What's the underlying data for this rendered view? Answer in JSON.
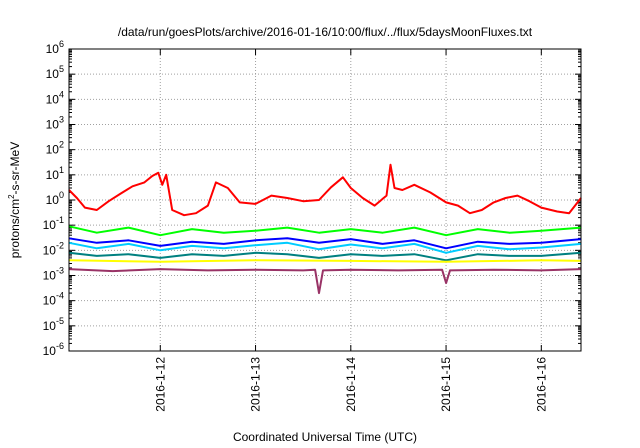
{
  "chart_data": {
    "type": "line",
    "title": "/data/run/goesPlots/archive/2016-01-16/10:00/flux/../flux/5daysMoonFluxes.txt",
    "xlabel": "Coordinated Universal Time (UTC)",
    "ylabel_parts": [
      "protons/cm",
      "2",
      "-s-sr-MeV"
    ],
    "x_range": [
      "2016-01-11T01:00",
      "2016-01-16T10:00"
    ],
    "x_ticks": [
      "2016-1-12",
      "2016-1-13",
      "2016-1-14",
      "2016-1-15",
      "2016-1-16"
    ],
    "x_tick_dates": [
      "2016-01-12",
      "2016-01-13",
      "2016-01-14",
      "2016-01-15",
      "2016-01-16"
    ],
    "y_scale": "log",
    "y_range": [
      1e-06,
      1000000.0
    ],
    "y_tick_exponents": [
      -6,
      -5,
      -4,
      -3,
      -2,
      -1,
      0,
      1,
      2,
      3,
      4,
      5,
      6
    ],
    "y_tick_base": "10",
    "grid": true,
    "series": [
      {
        "color": "#ff0000",
        "x": [
          "2016-01-11T01:00",
          "2016-01-11T03:00",
          "2016-01-11T05:00",
          "2016-01-11T08:00",
          "2016-01-11T11:00",
          "2016-01-11T14:00",
          "2016-01-11T17:00",
          "2016-01-11T20:00",
          "2016-01-11T22:00",
          "2016-01-11T23:30",
          "2016-01-12T00:30",
          "2016-01-12T01:30",
          "2016-01-12T03:00",
          "2016-01-12T06:00",
          "2016-01-12T09:00",
          "2016-01-12T12:00",
          "2016-01-12T14:00",
          "2016-01-12T17:00",
          "2016-01-12T20:00",
          "2016-01-13T00:00",
          "2016-01-13T04:00",
          "2016-01-13T08:00",
          "2016-01-13T12:00",
          "2016-01-13T16:00",
          "2016-01-13T19:00",
          "2016-01-13T22:00",
          "2016-01-14T00:00",
          "2016-01-14T03:00",
          "2016-01-14T06:00",
          "2016-01-14T09:00",
          "2016-01-14T10:00",
          "2016-01-14T11:00",
          "2016-01-14T13:00",
          "2016-01-14T16:00",
          "2016-01-14T20:00",
          "2016-01-15T00:00",
          "2016-01-15T03:00",
          "2016-01-15T06:00",
          "2016-01-15T09:00",
          "2016-01-15T12:00",
          "2016-01-15T15:00",
          "2016-01-15T18:00",
          "2016-01-15T21:00",
          "2016-01-16T00:00",
          "2016-01-16T04:00",
          "2016-01-16T07:00",
          "2016-01-16T10:00"
        ],
        "y": [
          2.5,
          1.2,
          0.5,
          0.4,
          0.9,
          1.8,
          3.5,
          5,
          9,
          12,
          4,
          10,
          0.4,
          0.25,
          0.3,
          0.6,
          5,
          3,
          0.8,
          0.7,
          1.5,
          1.2,
          0.9,
          1.0,
          3.2,
          8,
          3,
          1.2,
          0.6,
          1.5,
          25,
          3,
          2.5,
          4,
          2,
          0.8,
          0.6,
          0.3,
          0.4,
          0.8,
          1.2,
          1.5,
          0.9,
          0.5,
          0.35,
          0.3,
          1.2
        ]
      },
      {
        "color": "#00ff00",
        "x": [
          "2016-01-11T01:00",
          "2016-01-11T08:00",
          "2016-01-11T16:00",
          "2016-01-12T00:00",
          "2016-01-12T08:00",
          "2016-01-12T16:00",
          "2016-01-13T00:00",
          "2016-01-13T08:00",
          "2016-01-13T16:00",
          "2016-01-14T00:00",
          "2016-01-14T08:00",
          "2016-01-14T16:00",
          "2016-01-15T00:00",
          "2016-01-15T08:00",
          "2016-01-15T16:00",
          "2016-01-16T00:00",
          "2016-01-16T10:00"
        ],
        "y": [
          0.09,
          0.05,
          0.08,
          0.04,
          0.07,
          0.05,
          0.06,
          0.08,
          0.05,
          0.07,
          0.05,
          0.08,
          0.04,
          0.07,
          0.05,
          0.06,
          0.08
        ]
      },
      {
        "color": "#00ccff",
        "x": [
          "2016-01-11T01:00",
          "2016-01-11T08:00",
          "2016-01-11T16:00",
          "2016-01-12T00:00",
          "2016-01-12T08:00",
          "2016-01-12T16:00",
          "2016-01-13T00:00",
          "2016-01-13T08:00",
          "2016-01-13T16:00",
          "2016-01-14T00:00",
          "2016-01-14T08:00",
          "2016-01-14T16:00",
          "2016-01-15T00:00",
          "2016-01-15T08:00",
          "2016-01-15T16:00",
          "2016-01-16T00:00",
          "2016-01-16T10:00"
        ],
        "y": [
          0.02,
          0.012,
          0.018,
          0.01,
          0.015,
          0.012,
          0.016,
          0.02,
          0.011,
          0.017,
          0.012,
          0.018,
          0.008,
          0.015,
          0.011,
          0.013,
          0.018
        ]
      },
      {
        "color": "#0000ff",
        "x": [
          "2016-01-11T01:00",
          "2016-01-11T08:00",
          "2016-01-11T16:00",
          "2016-01-12T00:00",
          "2016-01-12T08:00",
          "2016-01-12T16:00",
          "2016-01-13T00:00",
          "2016-01-13T08:00",
          "2016-01-13T16:00",
          "2016-01-14T00:00",
          "2016-01-14T08:00",
          "2016-01-14T16:00",
          "2016-01-15T00:00",
          "2016-01-15T08:00",
          "2016-01-15T16:00",
          "2016-01-16T00:00",
          "2016-01-16T10:00"
        ],
        "y": [
          0.03,
          0.02,
          0.025,
          0.015,
          0.022,
          0.018,
          0.025,
          0.03,
          0.02,
          0.028,
          0.018,
          0.025,
          0.012,
          0.022,
          0.018,
          0.02,
          0.028
        ]
      },
      {
        "color": "#008080",
        "x": [
          "2016-01-11T01:00",
          "2016-01-11T08:00",
          "2016-01-11T16:00",
          "2016-01-12T00:00",
          "2016-01-12T08:00",
          "2016-01-12T16:00",
          "2016-01-13T00:00",
          "2016-01-13T08:00",
          "2016-01-13T16:00",
          "2016-01-14T00:00",
          "2016-01-14T08:00",
          "2016-01-14T16:00",
          "2016-01-15T00:00",
          "2016-01-15T08:00",
          "2016-01-15T16:00",
          "2016-01-16T00:00",
          "2016-01-16T10:00"
        ],
        "y": [
          0.008,
          0.006,
          0.007,
          0.005,
          0.007,
          0.006,
          0.008,
          0.007,
          0.005,
          0.007,
          0.006,
          0.007,
          0.004,
          0.007,
          0.006,
          0.006,
          0.008
        ]
      },
      {
        "color": "#ffff00",
        "x": [
          "2016-01-11T01:00",
          "2016-01-12T00:00",
          "2016-01-13T00:00",
          "2016-01-14T00:00",
          "2016-01-15T00:00",
          "2016-01-16T00:00",
          "2016-01-16T10:00"
        ],
        "y": [
          0.004,
          0.0035,
          0.004,
          0.0038,
          0.0035,
          0.004,
          0.0038
        ]
      },
      {
        "color": "#993366",
        "x": [
          "2016-01-11T01:00",
          "2016-01-11T12:00",
          "2016-01-12T00:00",
          "2016-01-12T12:00",
          "2016-01-13T00:00",
          "2016-01-13T12:00",
          "2016-01-13T15:00",
          "2016-01-13T16:00",
          "2016-01-13T17:00",
          "2016-01-14T00:00",
          "2016-01-14T12:00",
          "2016-01-14T23:00",
          "2016-01-15T00:00",
          "2016-01-15T01:00",
          "2016-01-15T12:00",
          "2016-01-16T00:00",
          "2016-01-16T10:00"
        ],
        "y": [
          0.0018,
          0.0015,
          0.0018,
          0.0016,
          0.0017,
          0.0016,
          0.0017,
          0.0002,
          0.0016,
          0.0017,
          0.0016,
          0.0017,
          0.0005,
          0.0016,
          0.0017,
          0.0016,
          0.0018
        ]
      }
    ]
  }
}
